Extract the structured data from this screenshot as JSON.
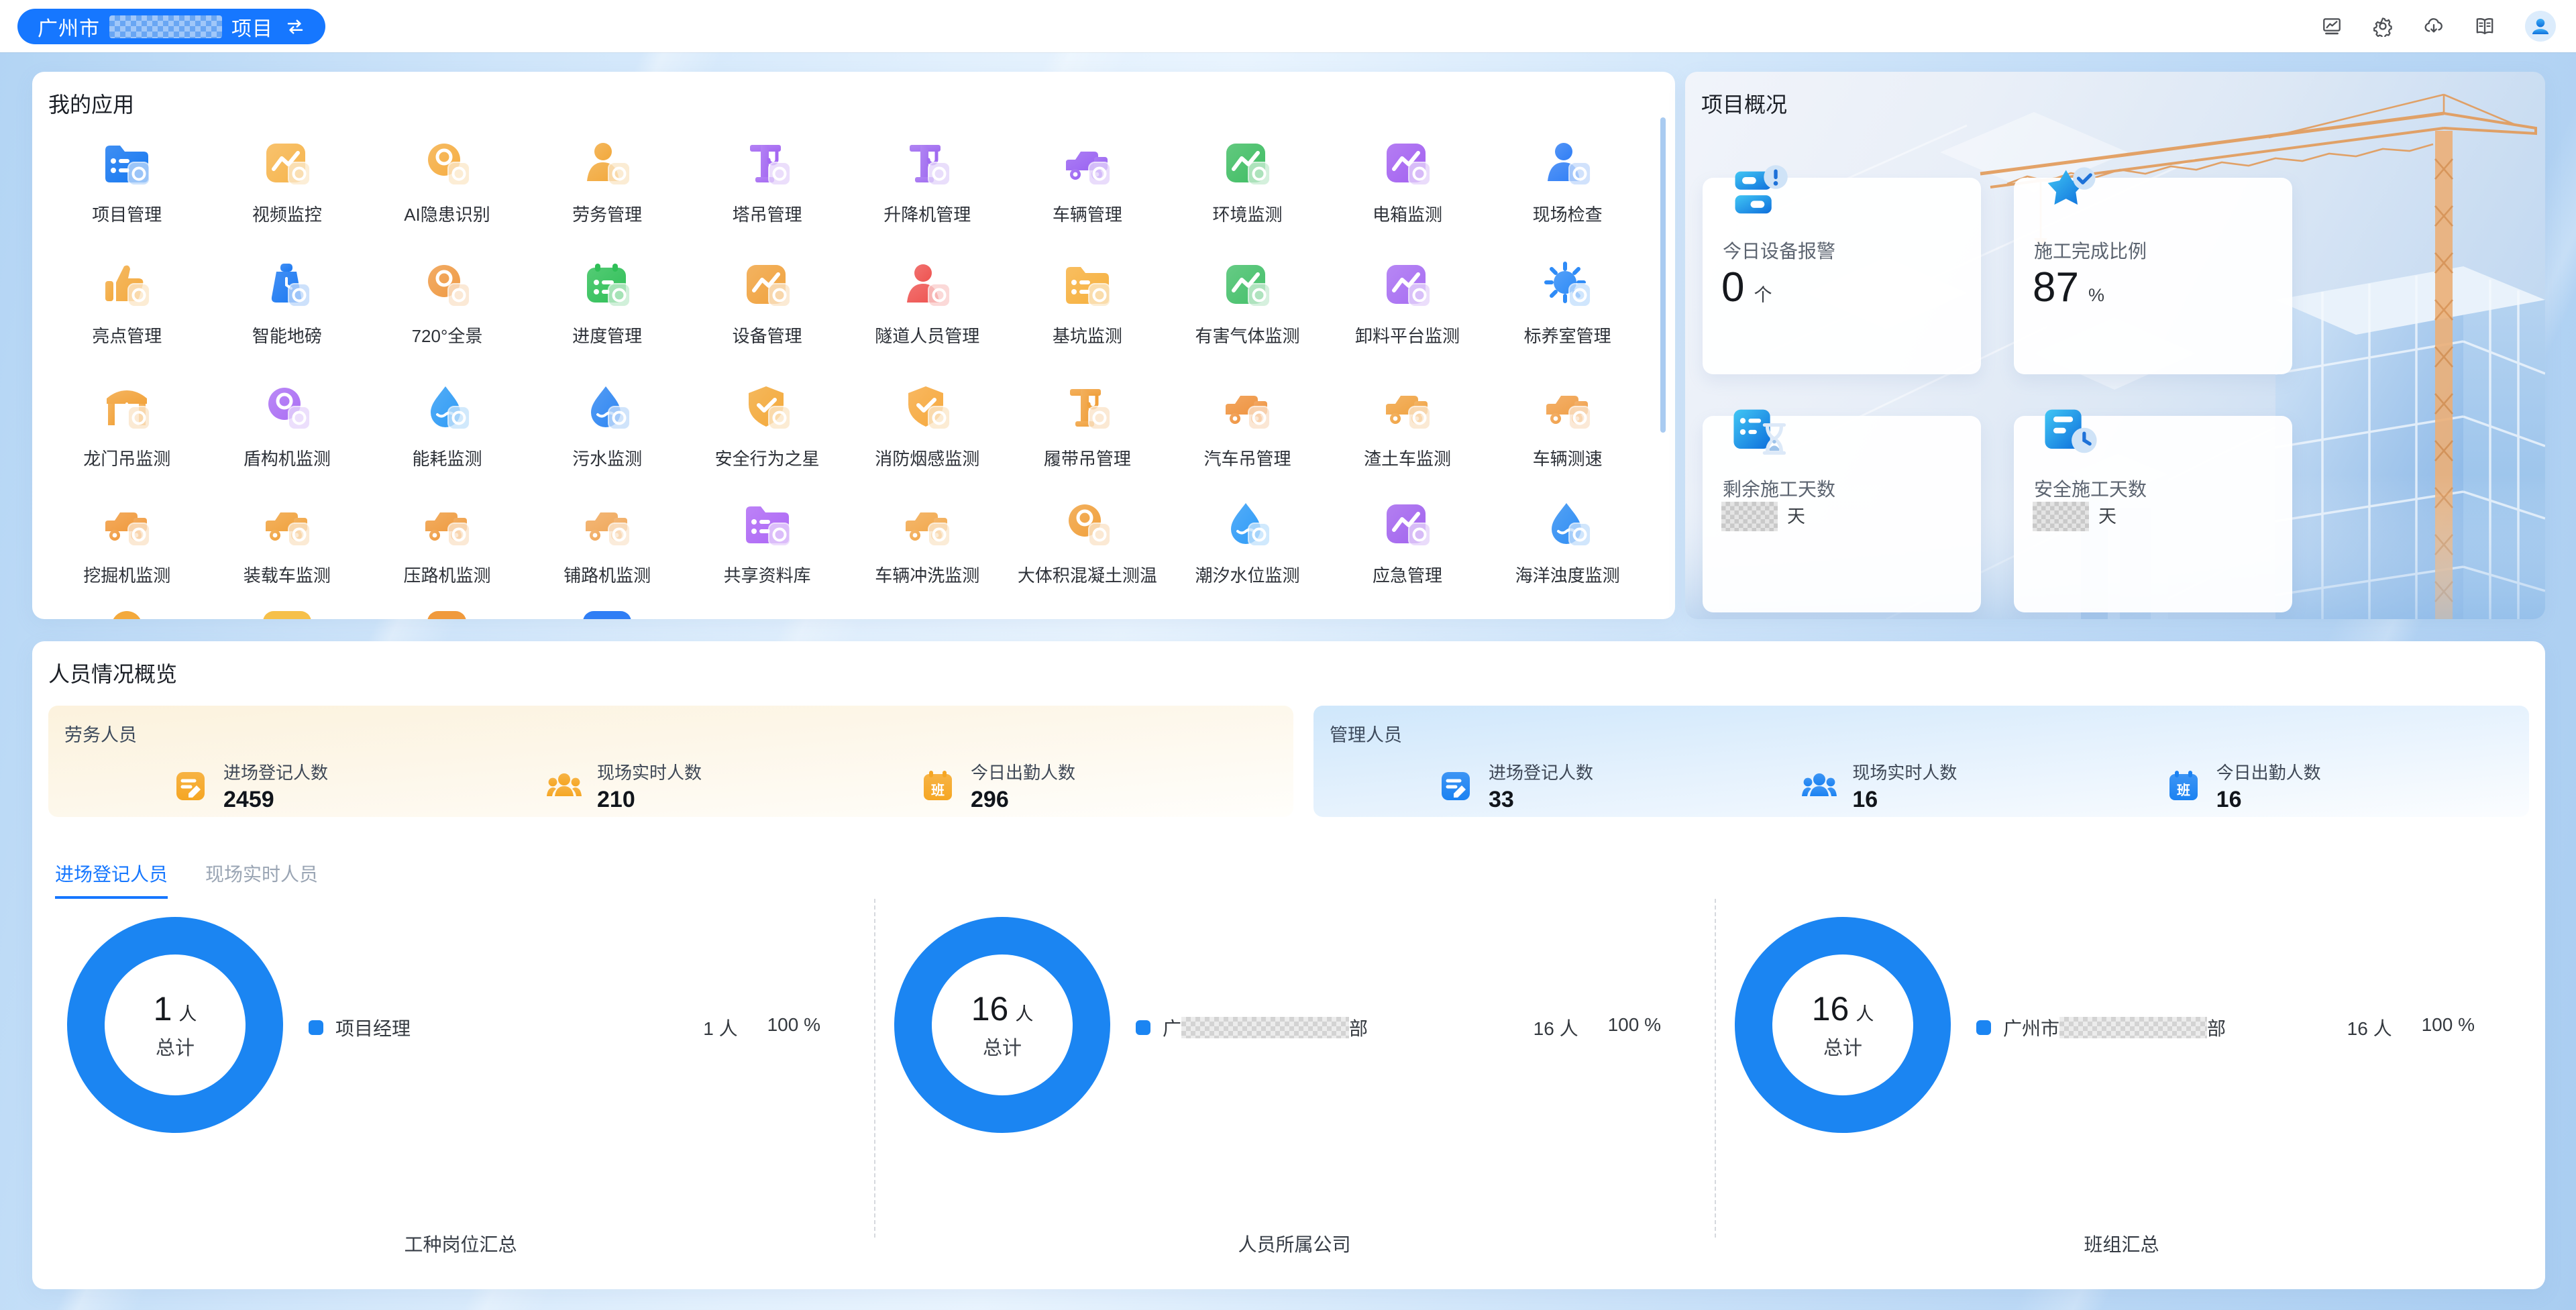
{
  "topbar": {
    "project_prefix": "广州市",
    "project_suffix": "项目",
    "icons": [
      "monitor-chart-icon",
      "settings-gear-icon",
      "cloud-download-icon",
      "manual-book-icon"
    ],
    "accent_color": "#1677ff"
  },
  "apps": {
    "title": "我的应用",
    "items": [
      {
        "label": "项目管理",
        "glyph": "folder",
        "color": "#1577f0"
      },
      {
        "label": "视频监控",
        "glyph": "square",
        "color": "#f6b54d"
      },
      {
        "label": "AI隐患识别",
        "glyph": "circle",
        "color": "#f5ad42"
      },
      {
        "label": "劳务管理",
        "glyph": "person",
        "color": "#f2a83b"
      },
      {
        "label": "塔吊管理",
        "glyph": "crane",
        "color": "#a468f2"
      },
      {
        "label": "升降机管理",
        "glyph": "crane",
        "color": "#a06cf0"
      },
      {
        "label": "车辆管理",
        "glyph": "vehicle",
        "color": "#9a63f2"
      },
      {
        "label": "环境监测",
        "glyph": "square",
        "color": "#3fbd63"
      },
      {
        "label": "电箱监测",
        "glyph": "square",
        "color": "#a361f0"
      },
      {
        "label": "现场检查",
        "glyph": "person",
        "color": "#2f7ef5"
      },
      {
        "label": "亮点管理",
        "glyph": "thumb",
        "color": "#f3a93d"
      },
      {
        "label": "智能地磅",
        "glyph": "weight",
        "color": "#1a78f2"
      },
      {
        "label": "720°全景",
        "glyph": "circle",
        "color": "#ef9a44"
      },
      {
        "label": "进度管理",
        "glyph": "calendar",
        "color": "#2fbf57"
      },
      {
        "label": "设备管理",
        "glyph": "square",
        "color": "#f0a23e"
      },
      {
        "label": "隧道人员管理",
        "glyph": "person",
        "color": "#ee5350"
      },
      {
        "label": "基坑监测",
        "glyph": "folder",
        "color": "#f6b03d"
      },
      {
        "label": "有害气体监测",
        "glyph": "square",
        "color": "#45c06a"
      },
      {
        "label": "卸料平台监测",
        "glyph": "square",
        "color": "#a76df2"
      },
      {
        "label": "标养室管理",
        "glyph": "sun",
        "color": "#2e8bf7"
      },
      {
        "label": "龙门吊监测",
        "glyph": "gantry",
        "color": "#f2a33c"
      },
      {
        "label": "盾构机监测",
        "glyph": "circle",
        "color": "#ab6ff4"
      },
      {
        "label": "能耗监测",
        "glyph": "drop",
        "color": "#2f9bf5"
      },
      {
        "label": "污水监测",
        "glyph": "drop",
        "color": "#2e86f2"
      },
      {
        "label": "安全行为之星",
        "glyph": "shield",
        "color": "#f3a93a"
      },
      {
        "label": "消防烟感监测",
        "glyph": "shield",
        "color": "#f6a93e"
      },
      {
        "label": "履带吊管理",
        "glyph": "crane",
        "color": "#f0a03c"
      },
      {
        "label": "汽车吊管理",
        "glyph": "vehicle",
        "color": "#ef9440"
      },
      {
        "label": "渣土车监测",
        "glyph": "vehicle",
        "color": "#f0a343"
      },
      {
        "label": "车辆测速",
        "glyph": "vehicle",
        "color": "#f0a04a"
      },
      {
        "label": "挖掘机监测",
        "glyph": "vehicle",
        "color": "#f09a3d"
      },
      {
        "label": "装载车监测",
        "glyph": "vehicle",
        "color": "#f0a23e"
      },
      {
        "label": "压路机监测",
        "glyph": "vehicle",
        "color": "#ef9c41"
      },
      {
        "label": "铺路机监测",
        "glyph": "vehicle",
        "color": "#f0a95c"
      },
      {
        "label": "共享资料库",
        "glyph": "folder",
        "color": "#ad66f5"
      },
      {
        "label": "车辆冲洗监测",
        "glyph": "vehicle",
        "color": "#f2a94e"
      },
      {
        "label": "大体积混凝土测温",
        "glyph": "circle",
        "color": "#f0a03c"
      },
      {
        "label": "潮汐水位监测",
        "glyph": "drop",
        "color": "#2e9bf7"
      },
      {
        "label": "应急管理",
        "glyph": "square",
        "color": "#a263ee"
      },
      {
        "label": "海洋浊度监测",
        "glyph": "drop",
        "color": "#2f8df3"
      }
    ],
    "clipped_row_colors": [
      "#f3a93c",
      "#f6c04a",
      "#f09a3d",
      "#2f7ef5"
    ]
  },
  "overview": {
    "title": "项目概况",
    "stats": [
      {
        "icon": "alarm",
        "label": "今日设备报警",
        "value": "0",
        "unit": "个",
        "redacted": false
      },
      {
        "icon": "star",
        "label": "施工完成比例",
        "value": "87",
        "unit": "%",
        "redacted": false
      },
      {
        "icon": "hourglass",
        "label": "剩余施工天数",
        "value": "",
        "unit": "天",
        "redacted": true
      },
      {
        "icon": "clock",
        "label": "安全施工天数",
        "value": "",
        "unit": "天",
        "redacted": true
      }
    ]
  },
  "personnel": {
    "title": "人员情况概览",
    "groups": [
      {
        "title": "劳务人员",
        "theme": "orange",
        "icon_color": "#f5a623",
        "stats": [
          {
            "icon": "register",
            "label": "进场登记人数",
            "value": "2459"
          },
          {
            "icon": "people",
            "label": "现场实时人数",
            "value": "210"
          },
          {
            "icon": "attendance",
            "label": "今日出勤人数",
            "value": "296"
          }
        ]
      },
      {
        "title": "管理人员",
        "theme": "blue",
        "icon_color": "#1b82f2",
        "stats": [
          {
            "icon": "register",
            "label": "进场登记人数",
            "value": "33"
          },
          {
            "icon": "people",
            "label": "现场实时人数",
            "value": "16"
          },
          {
            "icon": "attendance",
            "label": "今日出勤人数",
            "value": "16"
          }
        ]
      }
    ],
    "tabs": [
      {
        "label": "进场登记人员",
        "active": true
      },
      {
        "label": "现场实时人员",
        "active": false
      }
    ],
    "charts": [
      {
        "caption": "工种岗位汇总",
        "total": "1",
        "total_unit": "人",
        "total_label": "总计",
        "legend_prefix": "项目经理",
        "legend_redacted_width": 0,
        "legend_suffix": "",
        "count_text": "1 人",
        "percent_text": "100 %"
      },
      {
        "caption": "人员所属公司",
        "total": "16",
        "total_unit": "人",
        "total_label": "总计",
        "legend_prefix": "广",
        "legend_redacted_width": 250,
        "legend_suffix": "部",
        "count_text": "16 人",
        "percent_text": "100 %"
      },
      {
        "caption": "班组汇总",
        "total": "16",
        "total_unit": "人",
        "total_label": "总计",
        "legend_prefix": "广州市",
        "legend_redacted_width": 220,
        "legend_suffix": "部",
        "count_text": "16 人",
        "percent_text": "100 %"
      }
    ],
    "ring_color": "#1b85f2"
  },
  "chart_data": [
    {
      "type": "pie",
      "title": "工种岗位汇总",
      "labels": [
        "项目经理"
      ],
      "values": [
        1
      ],
      "unit": "人",
      "percents": [
        100
      ],
      "center_total": "1 人 总计"
    },
    {
      "type": "pie",
      "title": "人员所属公司",
      "labels": [
        "广……部(已打码)"
      ],
      "values": [
        16
      ],
      "unit": "人",
      "percents": [
        100
      ],
      "center_total": "16 人 总计"
    },
    {
      "type": "pie",
      "title": "班组汇总",
      "labels": [
        "广州市……部(已打码)"
      ],
      "values": [
        16
      ],
      "unit": "人",
      "percents": [
        100
      ],
      "center_total": "16 人 总计"
    }
  ]
}
